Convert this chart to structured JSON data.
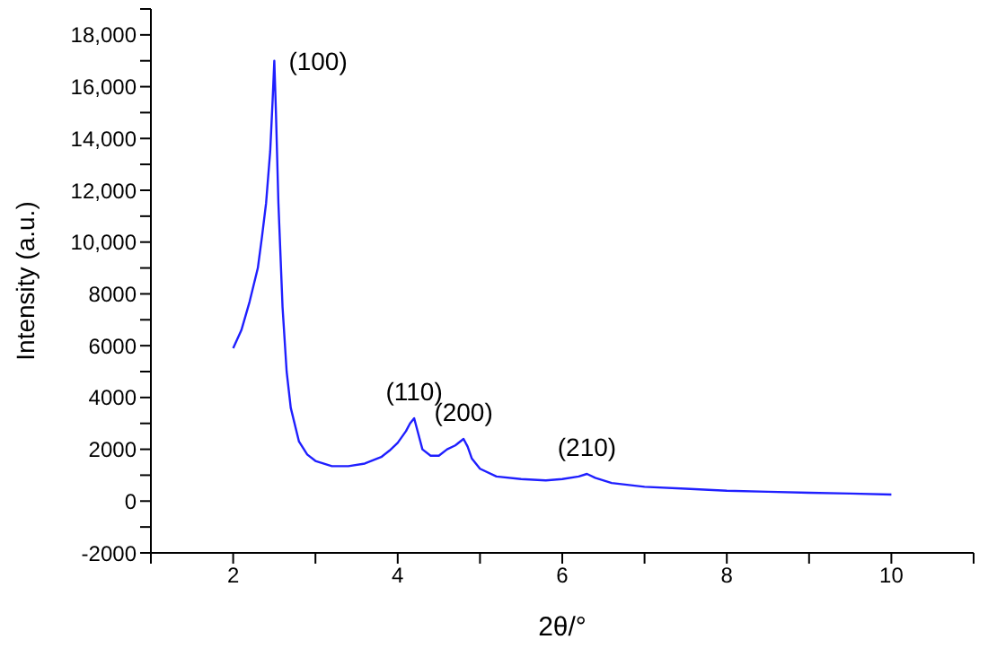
{
  "chart_data": {
    "type": "line",
    "xlabel": "2θ/°",
    "ylabel": "Intensity (a.u.)",
    "series": [
      {
        "color": "#1f1fff",
        "x": [
          2,
          2.1,
          2.2,
          2.3,
          2.35,
          2.4,
          2.45,
          2.48,
          2.5,
          2.52,
          2.55,
          2.6,
          2.65,
          2.7,
          2.8,
          2.9,
          3.0,
          3.2,
          3.4,
          3.6,
          3.8,
          3.9,
          4.0,
          4.1,
          4.15,
          4.2,
          4.25,
          4.3,
          4.4,
          4.5,
          4.6,
          4.7,
          4.8,
          4.85,
          4.9,
          5.0,
          5.2,
          5.5,
          5.8,
          6.0,
          6.2,
          6.3,
          6.4,
          6.6,
          7,
          7.5,
          8,
          8.5,
          9,
          9.5,
          10
        ],
        "values": [
          5900,
          6600,
          7700,
          9000,
          10200,
          11500,
          13500,
          15500,
          17000,
          15000,
          11500,
          7500,
          5000,
          3600,
          2300,
          1800,
          1550,
          1350,
          1350,
          1450,
          1700,
          1950,
          2250,
          2700,
          3000,
          3200,
          2600,
          2000,
          1750,
          1750,
          2000,
          2150,
          2400,
          2100,
          1650,
          1250,
          950,
          850,
          800,
          850,
          950,
          1050,
          900,
          700,
          550,
          480,
          400,
          360,
          320,
          290,
          250
        ]
      }
    ],
    "xlim": [
      1,
      11
    ],
    "xticks": [
      {
        "value": 1,
        "label": null
      },
      2,
      {
        "value": 3,
        "label": null
      },
      4,
      {
        "value": 5,
        "label": null
      },
      6,
      {
        "value": 7,
        "label": null
      },
      8,
      {
        "value": 9,
        "label": null
      },
      10,
      {
        "value": 11,
        "label": null
      }
    ],
    "ylim": [
      -2000,
      19000
    ],
    "yticks": [
      -2000,
      {
        "value": -1000,
        "label": null
      },
      0,
      {
        "value": 1000,
        "label": null
      },
      2000,
      {
        "value": 3000,
        "label": null
      },
      4000,
      {
        "value": 5000,
        "label": null
      },
      6000,
      {
        "value": 7000,
        "label": null
      },
      8000,
      {
        "value": 9000,
        "label": null
      },
      {
        "value": 10000,
        "label": "10,000"
      },
      {
        "value": 11000,
        "label": null
      },
      {
        "value": 12000,
        "label": "12,000"
      },
      {
        "value": 13000,
        "label": null
      },
      {
        "value": 14000,
        "label": "14,000"
      },
      {
        "value": 15000,
        "label": null
      },
      {
        "value": 16000,
        "label": "16,000"
      },
      {
        "value": 17000,
        "label": null
      },
      {
        "value": 18000,
        "label": "18,000"
      },
      {
        "value": 19000,
        "label": null
      }
    ],
    "annotations": [
      {
        "text": "(100)",
        "x": 2.5,
        "y": 17000
      },
      {
        "text": "(110)",
        "x": 4.2,
        "y": 3200
      },
      {
        "text": "(200)",
        "x": 4.8,
        "y": 2400
      },
      {
        "text": "(210)",
        "x": 6.3,
        "y": 1050
      }
    ],
    "grid": false,
    "legend": false,
    "marker": "none",
    "line_style": "solid"
  }
}
